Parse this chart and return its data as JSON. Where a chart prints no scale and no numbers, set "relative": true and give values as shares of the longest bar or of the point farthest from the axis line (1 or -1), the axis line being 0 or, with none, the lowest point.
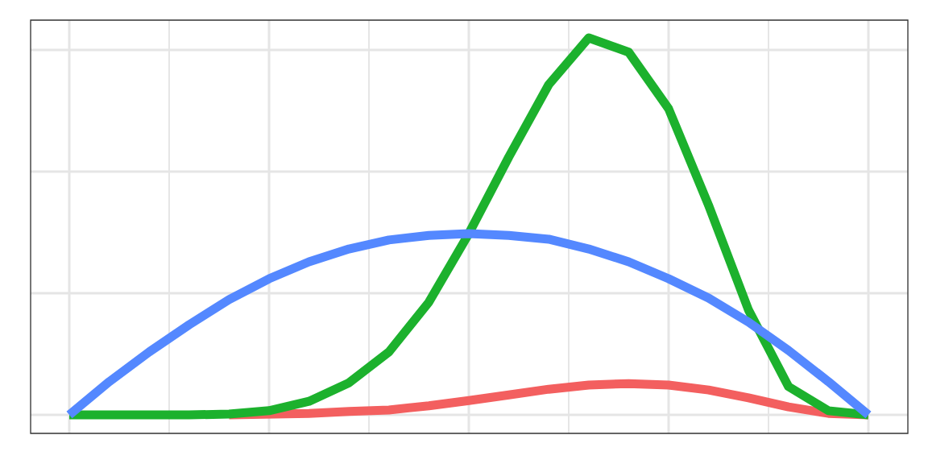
{
  "chart_data": {
    "type": "line",
    "relative": true,
    "grid": true,
    "categories": [
      null,
      null,
      null,
      null,
      null,
      null,
      null,
      null,
      null,
      null,
      null,
      null,
      null,
      null,
      null,
      null,
      null,
      null,
      null,
      null,
      null
    ],
    "series": [
      {
        "color": "#f35f5f",
        "values": [
          null,
          null,
          null,
          null,
          0,
          0.002,
          0.004,
          0.009,
          0.013,
          0.024,
          0.038,
          0.053,
          0.068,
          0.079,
          0.083,
          0.079,
          0.066,
          0.045,
          0.021,
          0.004,
          0
        ]
      },
      {
        "color": "#1cb12d",
        "values": [
          0,
          0,
          0,
          0,
          0.002,
          0.011,
          0.036,
          0.085,
          0.167,
          0.299,
          0.481,
          0.684,
          0.876,
          1,
          0.962,
          0.812,
          0.556,
          0.278,
          0.075,
          0.011,
          0
        ]
      },
      {
        "color": "#5488ff",
        "values": [
          0,
          0.088,
          0.167,
          0.239,
          0.306,
          0.361,
          0.406,
          0.44,
          0.464,
          0.476,
          0.481,
          0.476,
          0.466,
          0.44,
          0.406,
          0.361,
          0.31,
          0.246,
          0.171,
          0.088,
          0
        ]
      }
    ]
  }
}
